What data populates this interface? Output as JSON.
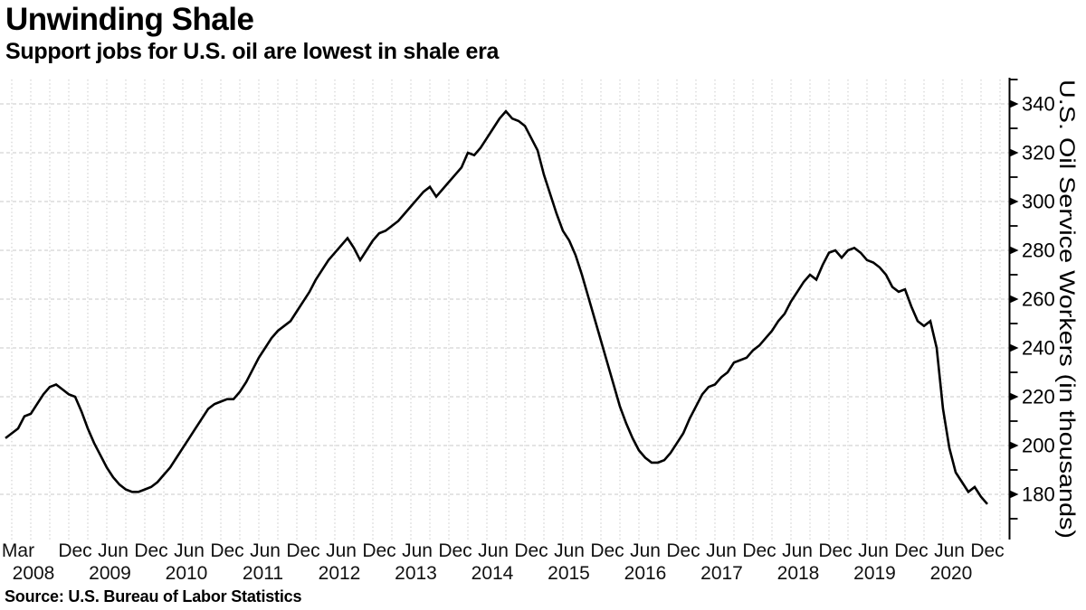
{
  "header": {
    "title": "Unwinding Shale",
    "subtitle": "Support jobs for U.S. oil are lowest in shale era"
  },
  "source_line": "Source: U.S. Bureau of Labor Statistics",
  "chart_data": {
    "type": "line",
    "title": "Unwinding Shale",
    "subtitle": "Support jobs for U.S. oil are lowest in shale era",
    "ylabel": "U.S. Oil Service Workers (in thousands)",
    "xlabel": "",
    "frequency": "monthly",
    "x_start": "2008-01",
    "x_end": "2020-12",
    "ylim": [
      161,
      351
    ],
    "yticks": [
      180,
      200,
      220,
      240,
      260,
      280,
      300,
      320,
      340
    ],
    "minor_yticks": [
      170,
      190,
      210,
      230,
      250,
      270,
      290,
      310,
      330,
      350
    ],
    "grid": true,
    "legend_position": "none",
    "line_color": "#000000",
    "grid_color": "#c9c9c9",
    "month_ticks": [
      {
        "m": 2,
        "label": "Mar"
      },
      {
        "m": 11,
        "label": "Dec"
      },
      {
        "m": 17,
        "label": "Jun"
      },
      {
        "m": 23,
        "label": "Dec"
      },
      {
        "m": 29,
        "label": "Jun"
      },
      {
        "m": 35,
        "label": "Dec"
      },
      {
        "m": 41,
        "label": "Jun"
      },
      {
        "m": 47,
        "label": "Dec"
      },
      {
        "m": 53,
        "label": "Jun"
      },
      {
        "m": 59,
        "label": "Dec"
      },
      {
        "m": 65,
        "label": "Jun"
      },
      {
        "m": 71,
        "label": "Dec"
      },
      {
        "m": 77,
        "label": "Jun"
      },
      {
        "m": 83,
        "label": "Dec"
      },
      {
        "m": 89,
        "label": "Jun"
      },
      {
        "m": 95,
        "label": "Dec"
      },
      {
        "m": 101,
        "label": "Jun"
      },
      {
        "m": 107,
        "label": "Dec"
      },
      {
        "m": 113,
        "label": "Jun"
      },
      {
        "m": 119,
        "label": "Dec"
      },
      {
        "m": 125,
        "label": "Jun"
      },
      {
        "m": 131,
        "label": "Dec"
      },
      {
        "m": 137,
        "label": "Jun"
      },
      {
        "m": 143,
        "label": "Dec"
      },
      {
        "m": 149,
        "label": "Jun"
      },
      {
        "m": 155,
        "label": "Dec"
      }
    ],
    "year_labels": [
      "2008",
      "2009",
      "2010",
      "2011",
      "2012",
      "2013",
      "2014",
      "2015",
      "2016",
      "2017",
      "2018",
      "2019",
      "2020"
    ],
    "series": [
      {
        "name": "U.S. oil service workers (thousands)",
        "values": [
          203,
          205,
          207,
          212,
          213,
          217,
          221,
          224,
          225,
          223,
          221,
          220,
          214,
          207,
          201,
          196,
          191,
          187,
          184,
          182,
          181,
          181,
          182,
          183,
          185,
          188,
          191,
          195,
          199,
          203,
          207,
          211,
          215,
          217,
          218,
          219,
          219,
          222,
          226,
          231,
          236,
          240,
          244,
          247,
          249,
          251,
          255,
          259,
          263,
          268,
          272,
          276,
          279,
          282,
          285,
          281,
          276,
          280,
          284,
          287,
          288,
          290,
          292,
          295,
          298,
          301,
          304,
          306,
          302,
          305,
          308,
          311,
          314,
          320,
          319,
          322,
          326,
          330,
          334,
          337,
          334,
          333,
          331,
          326,
          321,
          311,
          303,
          295,
          288,
          284,
          278,
          270,
          261,
          252,
          243,
          234,
          225,
          216,
          209,
          203,
          198,
          195,
          193,
          193,
          194,
          197,
          201,
          205,
          211,
          216,
          221,
          224,
          225,
          228,
          230,
          234,
          235,
          236,
          239,
          241,
          244,
          247,
          251,
          254,
          259,
          263,
          267,
          270,
          268,
          274,
          279,
          280,
          277,
          280,
          281,
          279,
          276,
          275,
          273,
          270,
          265,
          263,
          264,
          257,
          251,
          249,
          251,
          240,
          215,
          199,
          189,
          185,
          181,
          183,
          179,
          176
        ]
      }
    ]
  }
}
